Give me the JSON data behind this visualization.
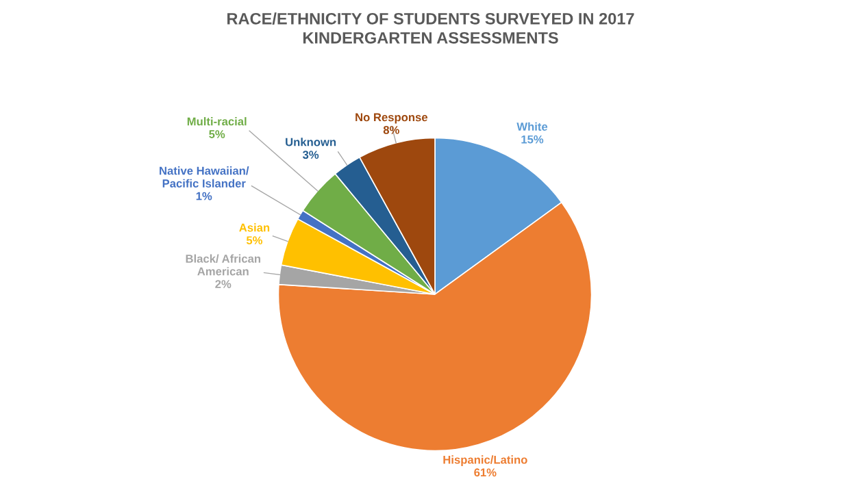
{
  "chart_data": {
    "type": "pie",
    "title": "RACE/ETHNICITY OF STUDENTS SURVEYED IN 2017\nKINDERGARTEN ASSESSMENTS",
    "categories": [
      "White",
      "Hispanic/Latino",
      "Black/ African\nAmerican",
      "Asian",
      "Native Hawaiian/\nPacific Islander",
      "Multi-racial",
      "Unknown",
      "No Response"
    ],
    "values": [
      15,
      61,
      2,
      5,
      1,
      5,
      3,
      8
    ],
    "colors": [
      "#5b9bd5",
      "#ed7d31",
      "#a5a5a5",
      "#ffc000",
      "#4472c4",
      "#70ad47",
      "#255e91",
      "#9e480e"
    ],
    "value_labels": [
      "15%",
      "61%",
      "2%",
      "5%",
      "1%",
      "5%",
      "3%",
      "8%"
    ],
    "data_labels": true,
    "legend": false
  }
}
